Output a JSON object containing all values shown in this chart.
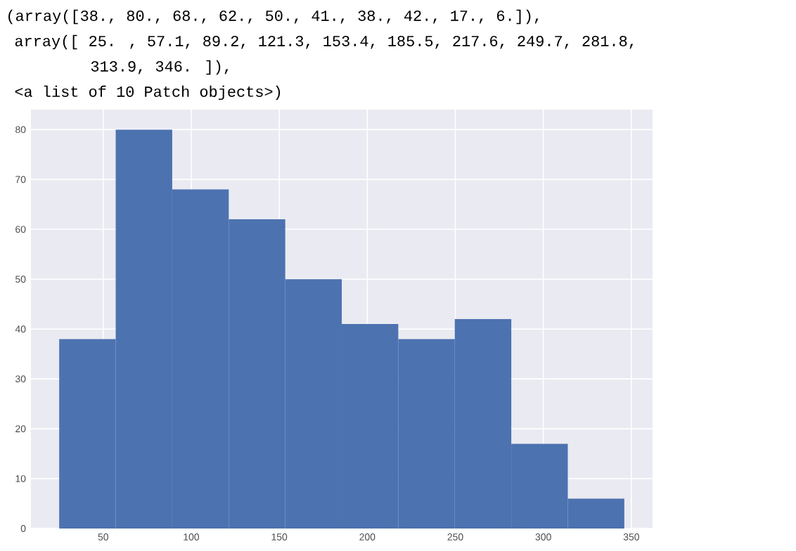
{
  "chart_data": {
    "type": "histogram",
    "annotations": [
      "(array([38., 80., 68., 62., 50., 41., 38., 42., 17.,  6.]),",
      "array([ 25. ,  57.1,  89.2, 121.3, 153.4, 185.5, 217.6, 249.7, 281.8,",
      "313.9, 346. ]),",
      "<a list of 10 Patch objects>)"
    ],
    "bins": [
      25,
      57.1,
      89.2,
      121.3,
      153.4,
      185.5,
      217.6,
      249.7,
      281.8,
      313.9,
      346
    ],
    "values": [
      38,
      80,
      68,
      62,
      50,
      41,
      38,
      42,
      17,
      6
    ],
    "color": "#4c72b0",
    "xlim": [
      8.95,
      362.05
    ],
    "ylim": [
      0,
      84
    ],
    "xticks": [
      50,
      100,
      150,
      200,
      250,
      300,
      350
    ],
    "yticks": [
      0,
      10,
      20,
      30,
      40,
      50,
      60,
      70,
      80
    ],
    "grid": true
  }
}
